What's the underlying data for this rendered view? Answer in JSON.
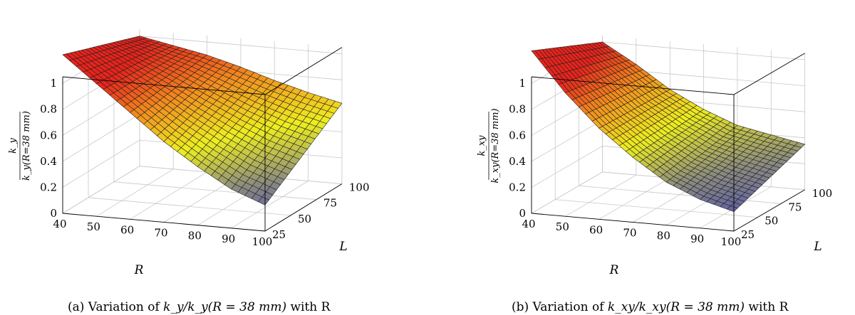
{
  "colors": {
    "high": "#e8231c",
    "mid_high": "#f28a1e",
    "mid": "#eeee1f",
    "mid_low": "#8a8a80",
    "low": "#3a3ac8"
  },
  "chart_data": [
    {
      "type": "surface",
      "title": "",
      "caption": "(a) Variation of k_y/k_y(R = 38 mm) with R",
      "caption_parts": {
        "pre": "(a) Variation of ",
        "math": "k_y/k_y(R = 38 mm)",
        "post": " with R"
      },
      "xlabel": "R",
      "ylabel": "L",
      "zlabel": "k_y / k_y(R=38 mm)",
      "zlabel_parts": {
        "num": "k_y",
        "den": "k_y(R=38 mm)"
      },
      "xlim": [
        40,
        100
      ],
      "ylim": [
        25,
        100
      ],
      "zlim": [
        0,
        1.05
      ],
      "x_ticks": [
        "40",
        "50",
        "60",
        "70",
        "80",
        "90",
        "100"
      ],
      "y_ticks": [
        "25",
        "50",
        "75",
        "100"
      ],
      "z_ticks": [
        "0",
        "0.2",
        "0.4",
        "0.6",
        "0.8",
        "1"
      ],
      "x": [
        40,
        50,
        60,
        70,
        80,
        90,
        100
      ],
      "series": [
        {
          "L": 25,
          "values": [
            1.22,
            1.02,
            0.82,
            0.62,
            0.45,
            0.3,
            0.2
          ]
        },
        {
          "L": 100,
          "values": [
            1.0,
            0.95,
            0.9,
            0.83,
            0.75,
            0.68,
            0.62
          ]
        }
      ],
      "grid": true
    },
    {
      "type": "surface",
      "title": "",
      "caption": "(b) Variation of k_xy/k_xy(R = 38 mm) with R",
      "caption_parts": {
        "pre": "(b) Variation of ",
        "math": "k_xy/k_xy(R = 38 mm)",
        "post": " with R"
      },
      "xlabel": "R",
      "ylabel": "L",
      "zlabel": "k_xy / k_xy(R=38 mm)",
      "zlabel_parts": {
        "num": "k_xy",
        "den": "k_xy(R=38 mm)"
      },
      "xlim": [
        40,
        100
      ],
      "ylim": [
        25,
        100
      ],
      "zlim": [
        0,
        1.05
      ],
      "x_ticks": [
        "40",
        "50",
        "60",
        "70",
        "80",
        "90",
        "100"
      ],
      "y_ticks": [
        "25",
        "50",
        "75",
        "100"
      ],
      "z_ticks": [
        "0",
        "0.2",
        "0.4",
        "0.6",
        "0.8",
        "1"
      ],
      "x": [
        40,
        50,
        60,
        70,
        80,
        90,
        100
      ],
      "series": [
        {
          "L": 25,
          "values": [
            1.25,
            0.95,
            0.7,
            0.5,
            0.33,
            0.22,
            0.15
          ]
        },
        {
          "L": 100,
          "values": [
            1.0,
            0.85,
            0.68,
            0.55,
            0.45,
            0.4,
            0.35
          ]
        }
      ],
      "grid": true
    }
  ]
}
